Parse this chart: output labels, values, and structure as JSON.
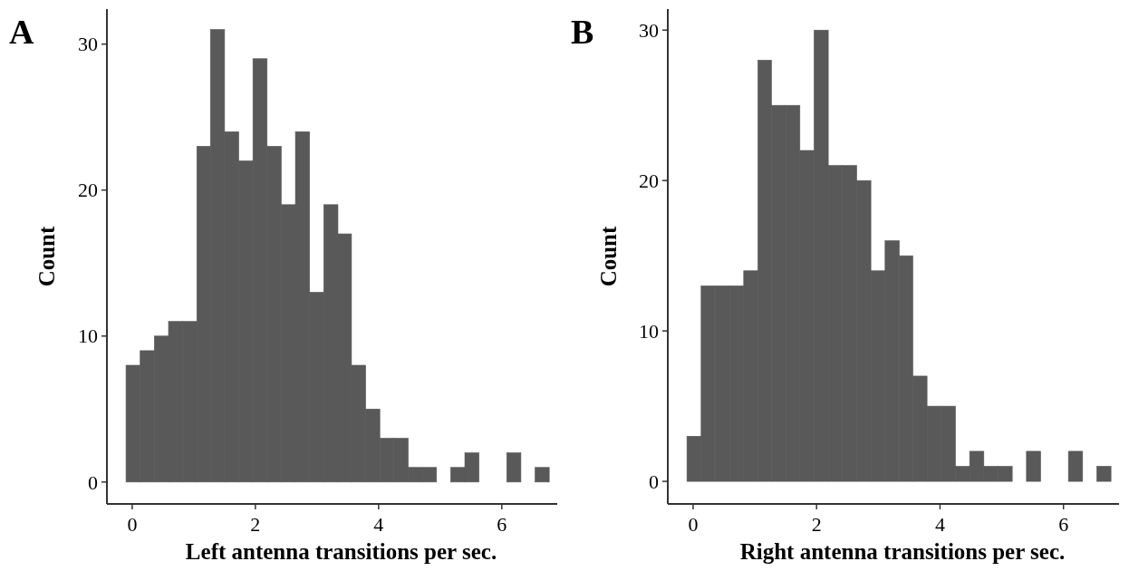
{
  "chart_data": [
    {
      "type": "histogram",
      "title": "A",
      "xlabel": "Left antenna transitions per sec.",
      "ylabel": "Count",
      "color": "#595959",
      "bins": [
        -0.1,
        0.13,
        0.36,
        0.59,
        0.82,
        1.05,
        1.27,
        1.5,
        1.73,
        1.96,
        2.19,
        2.42,
        2.65,
        2.88,
        3.11,
        3.34,
        3.56,
        3.79,
        4.02,
        4.25,
        4.48,
        4.71,
        4.94,
        5.17,
        5.4,
        5.63,
        6.08,
        6.31,
        6.54,
        6.77
      ],
      "values": [
        8,
        9,
        10,
        11,
        11,
        23,
        31,
        24,
        22,
        29,
        23,
        19,
        24,
        13,
        19,
        17,
        8,
        5,
        3,
        3,
        1,
        1,
        0,
        1,
        2,
        0,
        2,
        0,
        1
      ],
      "xlim": [
        -0.41,
        6.9
      ],
      "xticks": [
        0,
        2,
        4,
        6
      ],
      "ylim": [
        -1.5,
        32.4
      ],
      "yticks": [
        0,
        10,
        20,
        30
      ],
      "grid": false
    },
    {
      "type": "histogram",
      "title": "B",
      "xlabel": "Right antenna transitions per sec.",
      "ylabel": "Count",
      "color": "#595959",
      "bins": [
        -0.1,
        0.13,
        0.36,
        0.59,
        0.82,
        1.05,
        1.27,
        1.5,
        1.73,
        1.96,
        2.19,
        2.42,
        2.65,
        2.88,
        3.11,
        3.34,
        3.56,
        3.79,
        4.02,
        4.25,
        4.48,
        4.71,
        4.94,
        5.17,
        5.4,
        5.63,
        6.08,
        6.31,
        6.54,
        6.77
      ],
      "values": [
        3,
        13,
        13,
        13,
        14,
        28,
        25,
        25,
        22,
        30,
        21,
        21,
        20,
        14,
        16,
        15,
        7,
        5,
        5,
        1,
        2,
        1,
        1,
        0,
        2,
        0,
        2,
        0,
        1
      ],
      "xlim": [
        -0.41,
        6.9
      ],
      "xticks": [
        0,
        2,
        4,
        6
      ],
      "ylim": [
        -1.5,
        31.4
      ],
      "yticks": [
        0,
        10,
        20,
        30
      ],
      "grid": false
    }
  ]
}
